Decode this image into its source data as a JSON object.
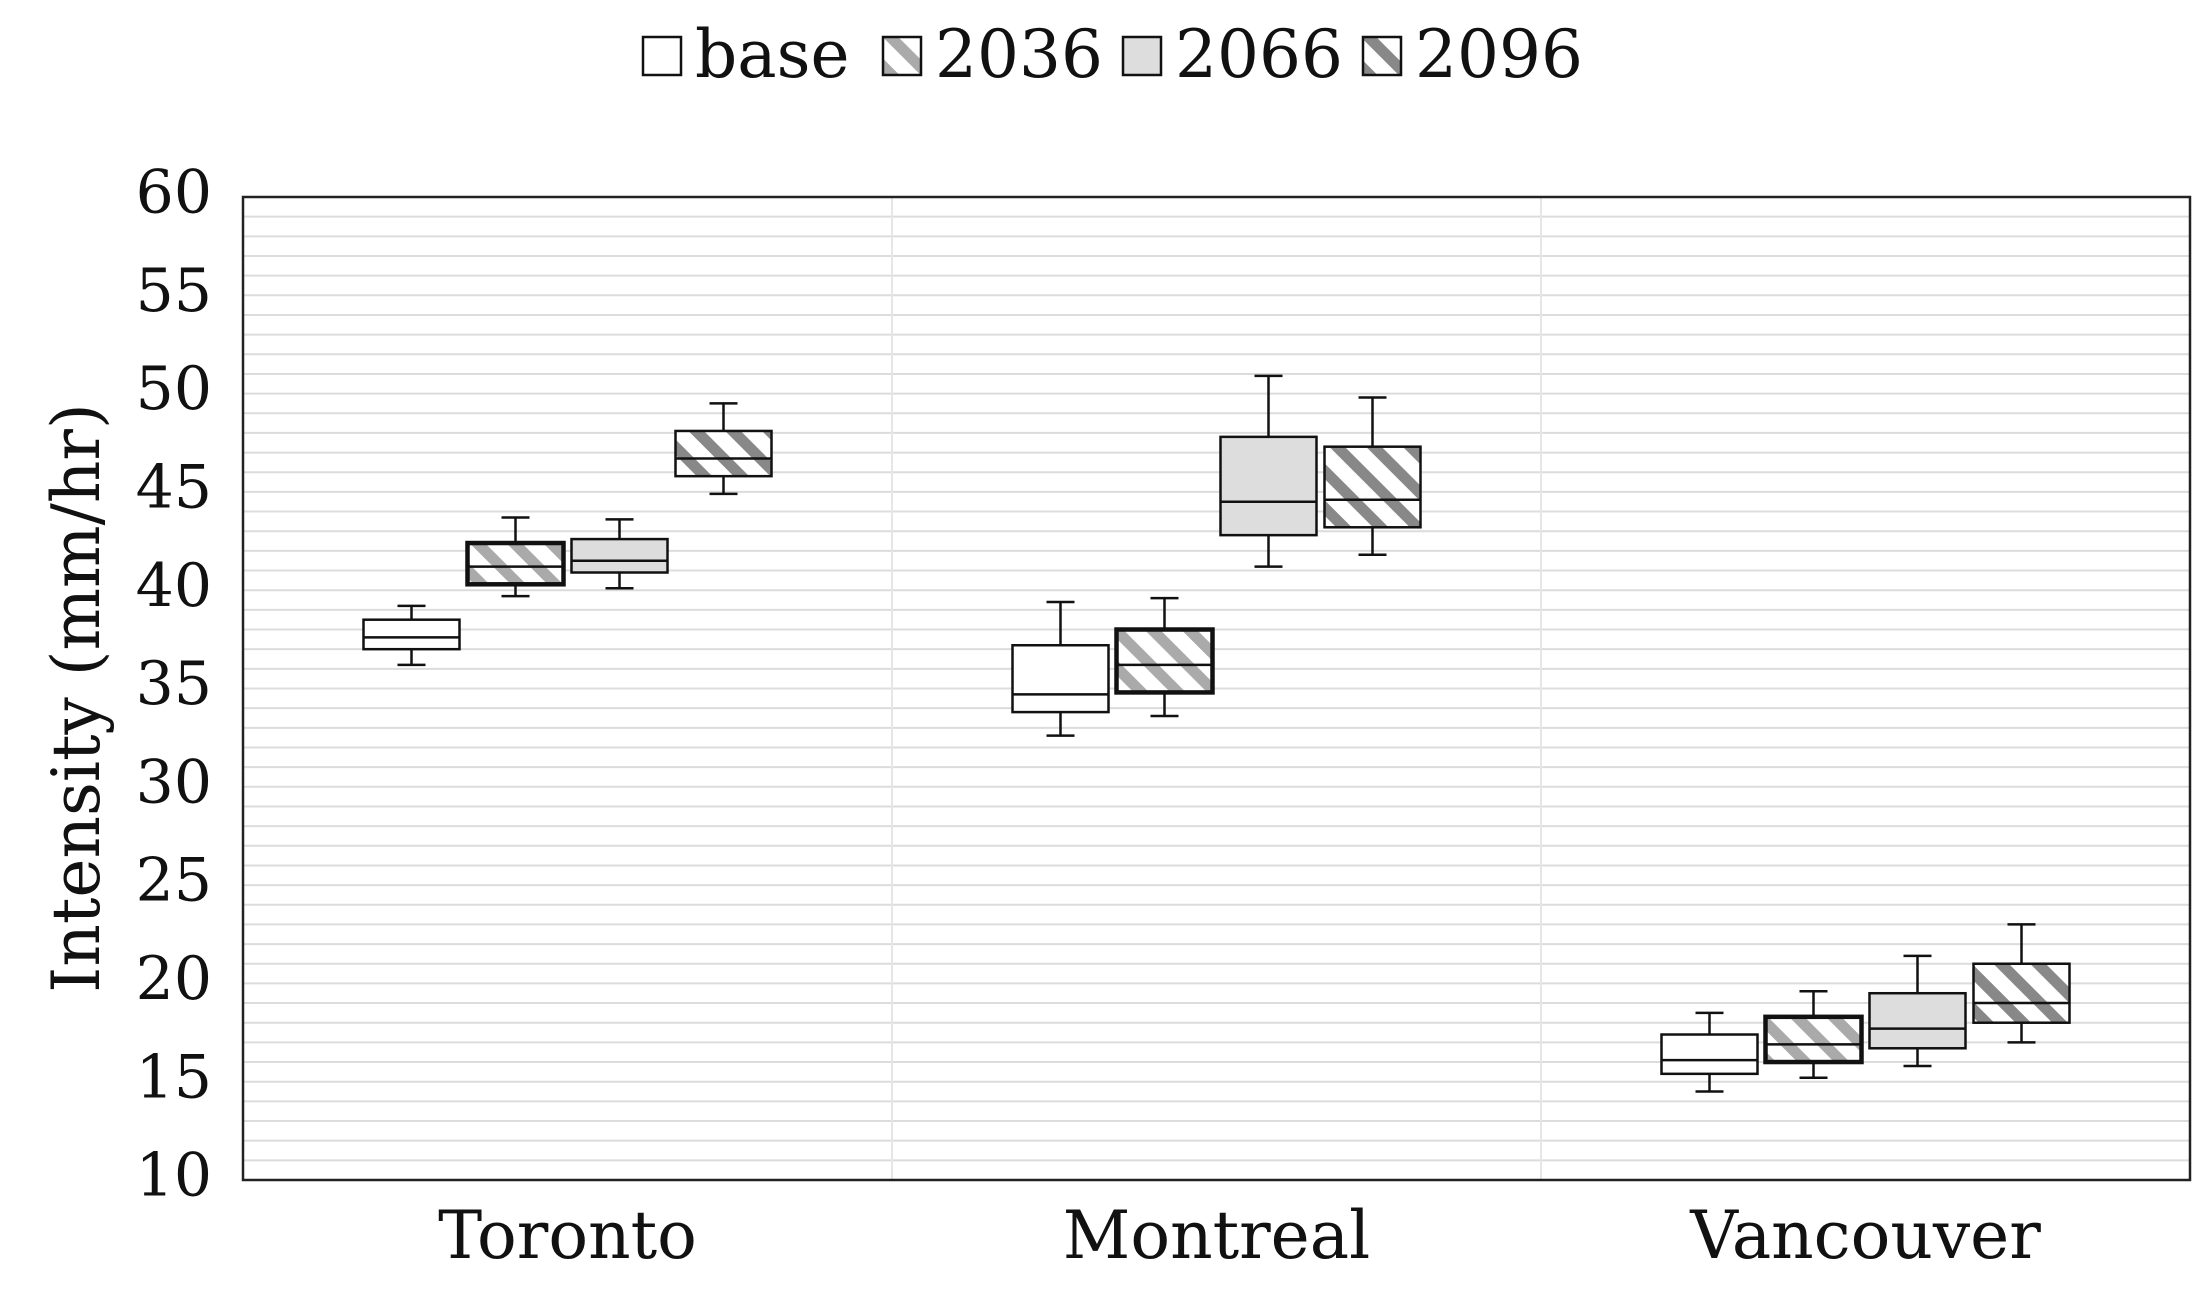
{
  "chart_data": {
    "type": "boxplot",
    "title": "",
    "xlabel": "",
    "ylabel": "Intensity (mm/hr)",
    "ylim": [
      10,
      60
    ],
    "yticks": [
      10,
      15,
      20,
      25,
      30,
      35,
      40,
      45,
      50,
      55,
      60
    ],
    "grid": true,
    "legend_position": "top",
    "categories": [
      "Toronto",
      "Montreal",
      "Vancouver"
    ],
    "series": [
      {
        "name": "base",
        "fill": "#ffffff",
        "hatch": false,
        "boxes": [
          {
            "min": 36.2,
            "q1": 37.0,
            "median": 37.6,
            "q3": 38.5,
            "max": 39.2
          },
          {
            "min": 32.6,
            "q1": 33.8,
            "median": 34.7,
            "q3": 37.2,
            "max": 39.4
          },
          {
            "min": 14.5,
            "q1": 15.4,
            "median": 16.1,
            "q3": 17.4,
            "max": 18.5
          }
        ]
      },
      {
        "name": "2036",
        "fill": "#ffffff",
        "hatch": true,
        "hatchColor": "#aaaaaa",
        "boxes": [
          {
            "min": 39.7,
            "q1": 40.3,
            "median": 41.2,
            "q3": 42.4,
            "max": 43.7
          },
          {
            "min": 33.6,
            "q1": 34.8,
            "median": 36.2,
            "q3": 38.0,
            "max": 39.6
          },
          {
            "min": 15.2,
            "q1": 16.0,
            "median": 16.9,
            "q3": 18.3,
            "max": 19.6
          }
        ]
      },
      {
        "name": "2066",
        "fill": "#dddddd",
        "hatch": false,
        "boxes": [
          {
            "min": 40.1,
            "q1": 40.9,
            "median": 41.5,
            "q3": 42.6,
            "max": 43.6
          },
          {
            "min": 41.2,
            "q1": 42.8,
            "median": 44.5,
            "q3": 47.8,
            "max": 50.9
          },
          {
            "min": 15.8,
            "q1": 16.7,
            "median": 17.7,
            "q3": 19.5,
            "max": 21.4
          }
        ]
      },
      {
        "name": "2096",
        "fill": "#ffffff",
        "hatch": true,
        "hatchColor": "#888888",
        "boxes": [
          {
            "min": 44.9,
            "q1": 45.8,
            "median": 46.7,
            "q3": 48.1,
            "max": 49.5
          },
          {
            "min": 41.8,
            "q1": 43.2,
            "median": 44.6,
            "q3": 47.3,
            "max": 49.8
          },
          {
            "min": 17.0,
            "q1": 18.0,
            "median": 19.0,
            "q3": 21.0,
            "max": 23.0
          }
        ]
      }
    ]
  }
}
